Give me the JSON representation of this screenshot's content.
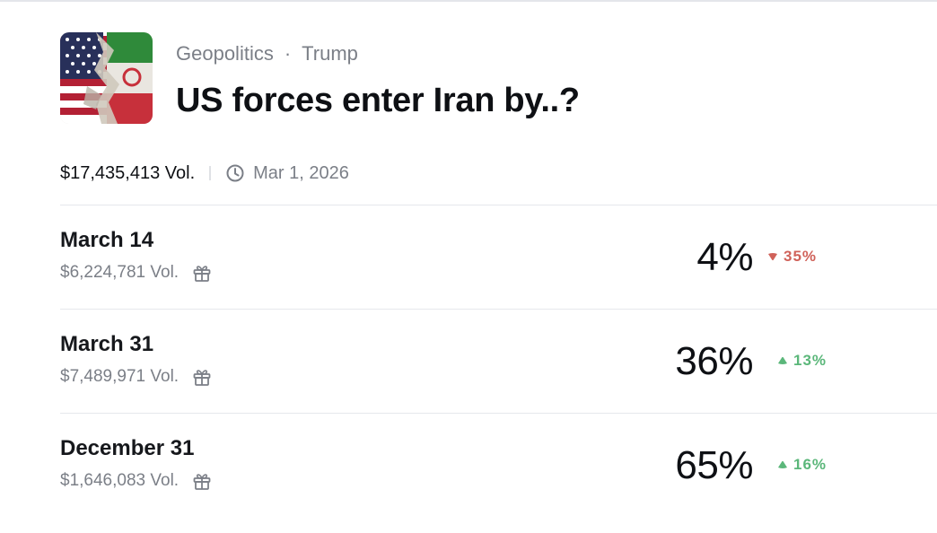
{
  "header": {
    "category": "Geopolitics",
    "separator": "·",
    "tag": "Trump",
    "title": "US forces enter Iran by..?"
  },
  "meta": {
    "volume": "$17,435,413 Vol.",
    "end_date": "Mar 1, 2026"
  },
  "outcomes": [
    {
      "name": "March 14",
      "volume": "$6,224,781 Vol.",
      "probability": "4%",
      "change": "35%",
      "direction": "down"
    },
    {
      "name": "March 31",
      "volume": "$7,489,971 Vol.",
      "probability": "36%",
      "change": "13%",
      "direction": "up"
    },
    {
      "name": "December 31",
      "volume": "$1,646,083 Vol.",
      "probability": "65%",
      "change": "16%",
      "direction": "up"
    }
  ],
  "colors": {
    "down": "#d0625a",
    "up": "#5bb77a",
    "muted_text": "#7b7f87"
  },
  "icons": [
    "market-flag-image",
    "clock-icon",
    "gift-icon",
    "triangle-down-icon",
    "triangle-up-icon"
  ]
}
